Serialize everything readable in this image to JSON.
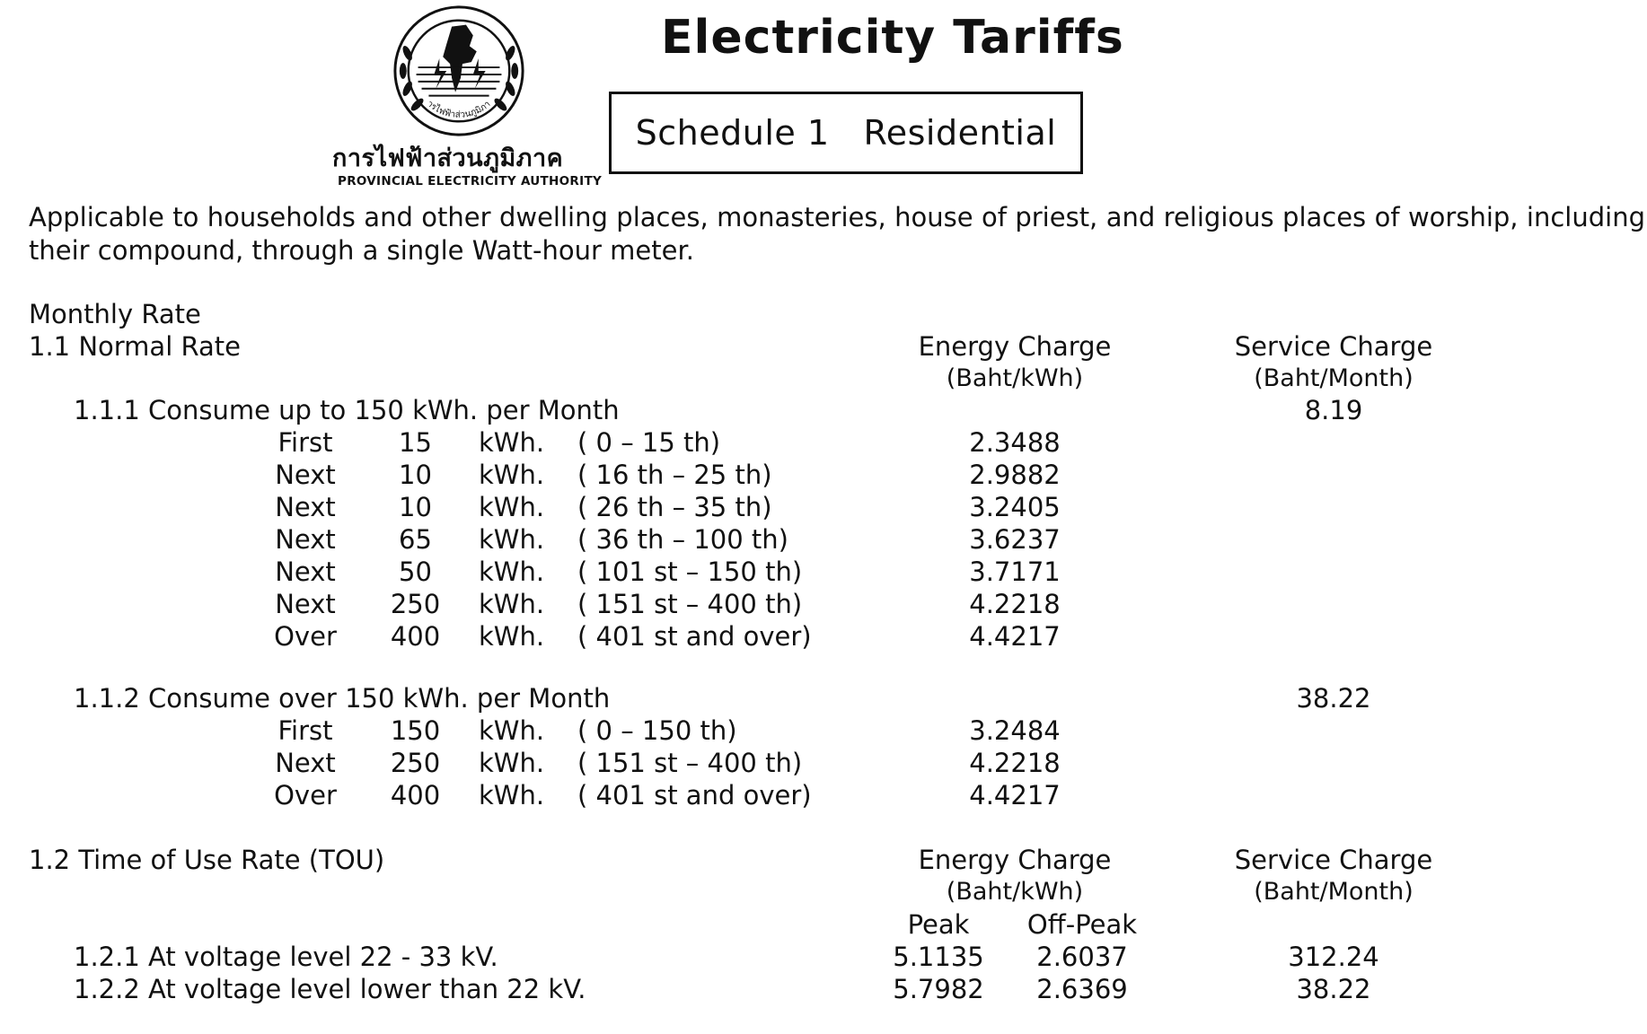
{
  "header": {
    "org_thai": "การไฟฟ้าส่วนภูมิภาค",
    "org_english": "PROVINCIAL ELECTRICITY AUTHORITY",
    "logo_ring_text": "การไฟฟ้าส่วนภูมิภาค",
    "title": "Electricity Tariffs",
    "schedule_number": "Schedule 1",
    "schedule_name": "Residential"
  },
  "intro": "Applicable to households and other dwelling places, monasteries, house of priest, and religious places of worship, including their compound, through a single Watt-hour meter.",
  "monthly_rate": {
    "heading": "Monthly Rate",
    "normal": {
      "heading": "1.1 Normal Rate",
      "energy_charge_label": "Energy Charge",
      "energy_charge_unit": "(Baht/kWh)",
      "service_charge_label": "Service Charge",
      "service_charge_unit": "(Baht/Month)",
      "up_to_150": {
        "heading": "1.1.1 Consume up to 150 kWh. per Month",
        "service_charge": "8.19",
        "rows": [
          {
            "step": "First",
            "amount": "15",
            "unit": "kWh.",
            "range": "( 0 – 15 th)",
            "rate": "2.3488"
          },
          {
            "step": "Next",
            "amount": "10",
            "unit": "kWh.",
            "range": "( 16 th – 25 th)",
            "rate": "2.9882"
          },
          {
            "step": "Next",
            "amount": "10",
            "unit": "kWh.",
            "range": "( 26 th – 35 th)",
            "rate": "3.2405"
          },
          {
            "step": "Next",
            "amount": "65",
            "unit": "kWh.",
            "range": "( 36 th – 100 th)",
            "rate": "3.6237"
          },
          {
            "step": "Next",
            "amount": "50",
            "unit": "kWh.",
            "range": "( 101 st – 150 th)",
            "rate": "3.7171"
          },
          {
            "step": "Next",
            "amount": "250",
            "unit": "kWh.",
            "range": "( 151 st – 400 th)",
            "rate": "4.2218"
          },
          {
            "step": "Over",
            "amount": "400",
            "unit": "kWh.",
            "range": "( 401 st and over)",
            "rate": "4.4217"
          }
        ]
      },
      "over_150": {
        "heading": "1.1.2 Consume over 150 kWh. per Month",
        "service_charge": "38.22",
        "rows": [
          {
            "step": "First",
            "amount": "150",
            "unit": "kWh.",
            "range": "( 0 – 150 th)",
            "rate": "3.2484"
          },
          {
            "step": "Next",
            "amount": "250",
            "unit": "kWh.",
            "range": "( 151 st – 400 th)",
            "rate": "4.2218"
          },
          {
            "step": "Over",
            "amount": "400",
            "unit": "kWh.",
            "range": "( 401 st and over)",
            "rate": "4.4217"
          }
        ]
      }
    },
    "tou": {
      "heading": "1.2 Time of Use Rate (TOU)",
      "energy_charge_label": "Energy Charge",
      "energy_charge_unit": "(Baht/kWh)",
      "service_charge_label": "Service Charge",
      "service_charge_unit": "(Baht/Month)",
      "peak_label": "Peak",
      "offpeak_label": "Off-Peak",
      "rows": [
        {
          "label": "1.2.1 At voltage level 22 - 33 kV.",
          "peak": "5.1135",
          "offpeak": "2.6037",
          "service": "312.24"
        },
        {
          "label": "1.2.2 At voltage level lower than 22 kV.",
          "peak": "5.7982",
          "offpeak": "2.6369",
          "service": "38.22"
        }
      ]
    }
  }
}
